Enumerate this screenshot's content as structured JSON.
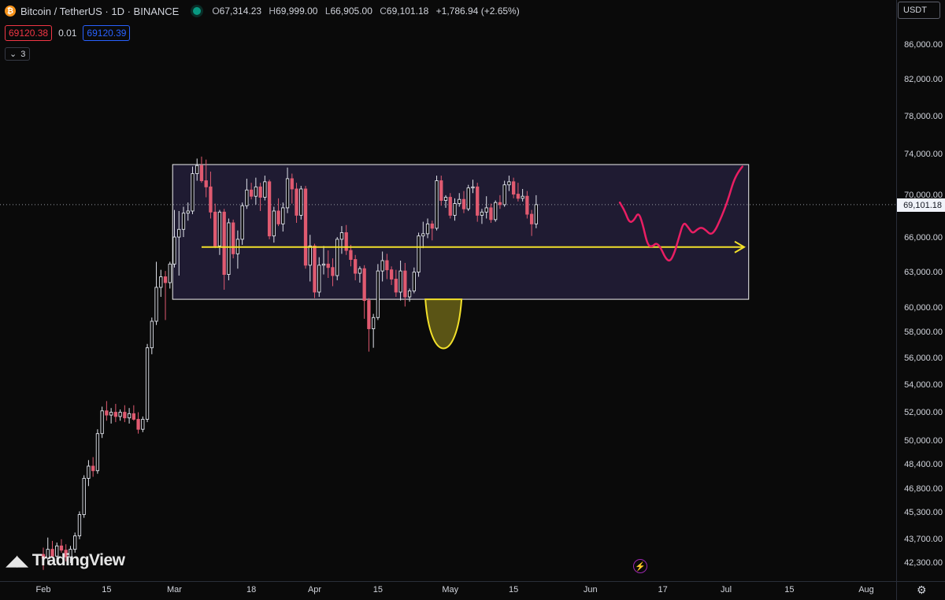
{
  "header": {
    "icon_letter": "₿",
    "symbol": "Bitcoin / TetherUS · 1D · BINANCE",
    "ohlc": [
      {
        "k": "O",
        "v": "67,314.23"
      },
      {
        "k": "H",
        "v": "69,999.00"
      },
      {
        "k": "L",
        "v": "66,905.00"
      },
      {
        "k": "C",
        "v": "69,101.18"
      }
    ],
    "change": "+1,786.94 (+2.65%)"
  },
  "trade": {
    "sell": "69120.38",
    "spread": "0.01",
    "buy": "69120.39"
  },
  "indicators": {
    "chevron": "⌄",
    "count": "3"
  },
  "currency": "USDT",
  "current_price_label": "69,101.18",
  "logo_text": "TradingView",
  "colors": {
    "up": "#e0e3eb",
    "down": "#e05a70",
    "box_border": "#f0f0f0",
    "box_fill": "#231f3a",
    "arrow": "#f2e02a",
    "projection": "#e91e63",
    "cup": "#f2e02a"
  },
  "chart_data": {
    "type": "candlestick",
    "title": "Bitcoin / TetherUS · 1D · BINANCE",
    "price_ticks": [
      {
        "label": "86,000.00",
        "y": 86000
      },
      {
        "label": "82,000.00",
        "y": 82000
      },
      {
        "label": "78,000.00",
        "y": 78000
      },
      {
        "label": "74,000.00",
        "y": 74000
      },
      {
        "label": "70,000.00",
        "y": 70000
      },
      {
        "label": "66,000.00",
        "y": 66000
      },
      {
        "label": "63,000.00",
        "y": 63000
      },
      {
        "label": "60,000.00",
        "y": 60000
      },
      {
        "label": "58,000.00",
        "y": 58000
      },
      {
        "label": "56,000.00",
        "y": 56000
      },
      {
        "label": "54,000.00",
        "y": 54000
      },
      {
        "label": "52,000.00",
        "y": 52000
      },
      {
        "label": "50,000.00",
        "y": 50000
      },
      {
        "label": "48,400.00",
        "y": 48400
      },
      {
        "label": "46,800.00",
        "y": 46800
      },
      {
        "label": "45,300.00",
        "y": 45300
      },
      {
        "label": "43,700.00",
        "y": 43700
      },
      {
        "label": "42,300.00",
        "y": 42300
      }
    ],
    "time_ticks": [
      {
        "label": "Feb",
        "day": 0
      },
      {
        "label": "15",
        "day": 14
      },
      {
        "label": "Mar",
        "day": 29
      },
      {
        "label": "18",
        "day": 46
      },
      {
        "label": "Apr",
        "day": 60
      },
      {
        "label": "15",
        "day": 74
      },
      {
        "label": "May",
        "day": 90
      },
      {
        "label": "15",
        "day": 104
      },
      {
        "label": "Jun",
        "day": 121
      },
      {
        "label": "17",
        "day": 137
      },
      {
        "label": "Jul",
        "day": 151
      },
      {
        "label": "15",
        "day": 165
      },
      {
        "label": "Aug",
        "day": 182
      }
    ],
    "current_price": 69101.18,
    "candles": [
      [
        42800,
        43200,
        41900,
        42580
      ],
      [
        42580,
        43800,
        42200,
        43100
      ],
      [
        43100,
        43600,
        42600,
        42700
      ],
      [
        42700,
        43500,
        42500,
        43300
      ],
      [
        43300,
        43700,
        42900,
        43050
      ],
      [
        43050,
        43400,
        42400,
        42650
      ],
      [
        42650,
        43300,
        42300,
        43100
      ],
      [
        43100,
        44100,
        42900,
        43900
      ],
      [
        43900,
        45400,
        43700,
        45200
      ],
      [
        45200,
        47700,
        45000,
        47500
      ],
      [
        47500,
        48700,
        47000,
        48300
      ],
      [
        48300,
        48900,
        47600,
        48000
      ],
      [
        48000,
        50800,
        47800,
        50500
      ],
      [
        50500,
        52400,
        50200,
        52100
      ],
      [
        52100,
        52800,
        51400,
        51800
      ],
      [
        51800,
        52300,
        51200,
        52000
      ],
      [
        52000,
        52600,
        51300,
        51700
      ],
      [
        51700,
        52200,
        51400,
        52000
      ],
      [
        52000,
        52500,
        51300,
        51600
      ],
      [
        51600,
        52300,
        51200,
        51900
      ],
      [
        51900,
        52500,
        51400,
        51500
      ],
      [
        51500,
        52000,
        50500,
        50800
      ],
      [
        50800,
        51700,
        50600,
        51500
      ],
      [
        51500,
        57100,
        51300,
        56800
      ],
      [
        56800,
        59200,
        56300,
        58900
      ],
      [
        58900,
        63900,
        58600,
        61700
      ],
      [
        61700,
        63200,
        60900,
        62600
      ],
      [
        62600,
        63100,
        59000,
        62100
      ],
      [
        62100,
        63900,
        61600,
        63700
      ],
      [
        63700,
        68600,
        63400,
        66100
      ],
      [
        66100,
        68500,
        62700,
        66800
      ],
      [
        66800,
        68900,
        66100,
        68300
      ],
      [
        68300,
        69300,
        67600,
        68500
      ],
      [
        68500,
        72800,
        68200,
        72100
      ],
      [
        72100,
        73600,
        71400,
        72900
      ],
      [
        72900,
        73800,
        71200,
        71400
      ],
      [
        71400,
        73500,
        69800,
        70800
      ],
      [
        70800,
        72300,
        67800,
        68400
      ],
      [
        68400,
        69200,
        65100,
        65300
      ],
      [
        65300,
        68600,
        64500,
        68400
      ],
      [
        68400,
        68700,
        61500,
        62800
      ],
      [
        62800,
        67800,
        62300,
        67400
      ],
      [
        67400,
        67700,
        64200,
        64600
      ],
      [
        64600,
        66700,
        63300,
        65900
      ],
      [
        65900,
        69300,
        65400,
        69000
      ],
      [
        69000,
        71600,
        68700,
        70500
      ],
      [
        70500,
        71200,
        69600,
        69900
      ],
      [
        69900,
        71700,
        69100,
        70800
      ],
      [
        70800,
        71200,
        68500,
        69800
      ],
      [
        69800,
        71900,
        69500,
        71300
      ],
      [
        71300,
        71500,
        65900,
        66200
      ],
      [
        66200,
        68900,
        65600,
        68500
      ],
      [
        68500,
        69700,
        67100,
        67300
      ],
      [
        67300,
        69300,
        66600,
        68800
      ],
      [
        68800,
        72700,
        68300,
        71600
      ],
      [
        71600,
        72100,
        69200,
        70600
      ],
      [
        70600,
        71200,
        67400,
        68100
      ],
      [
        68100,
        70900,
        67700,
        70600
      ],
      [
        70600,
        70900,
        63300,
        63600
      ],
      [
        63600,
        66300,
        62200,
        65300
      ],
      [
        65300,
        65500,
        60800,
        61300
      ],
      [
        61300,
        64300,
        60900,
        63600
      ],
      [
        63600,
        65300,
        62800,
        63700
      ],
      [
        63700,
        64900,
        62500,
        63400
      ],
      [
        63400,
        64200,
        61800,
        62700
      ],
      [
        62700,
        66100,
        62300,
        65900
      ],
      [
        65900,
        67100,
        64600,
        66500
      ],
      [
        66500,
        67200,
        64500,
        64900
      ],
      [
        64900,
        65400,
        63500,
        64100
      ],
      [
        64100,
        64500,
        62300,
        62900
      ],
      [
        62900,
        63500,
        62100,
        63300
      ],
      [
        63300,
        63600,
        59100,
        60600
      ],
      [
        60600,
        60800,
        56500,
        58300
      ],
      [
        58300,
        59500,
        56800,
        59200
      ],
      [
        59200,
        63700,
        59000,
        63100
      ],
      [
        63100,
        64800,
        62200,
        64000
      ],
      [
        64000,
        64600,
        62400,
        63200
      ],
      [
        63200,
        63500,
        61900,
        62400
      ],
      [
        62400,
        63200,
        60900,
        61300
      ],
      [
        61300,
        64000,
        60600,
        63100
      ],
      [
        63100,
        63800,
        60100,
        60900
      ],
      [
        60900,
        61600,
        60500,
        61400
      ],
      [
        61400,
        63400,
        61200,
        63000
      ],
      [
        63000,
        66500,
        62600,
        66200
      ],
      [
        66200,
        67500,
        65100,
        66400
      ],
      [
        66400,
        67800,
        66000,
        67300
      ],
      [
        67300,
        67600,
        65800,
        66900
      ],
      [
        66900,
        71900,
        66700,
        71400
      ],
      [
        71400,
        71900,
        69000,
        69500
      ],
      [
        69500,
        70000,
        68800,
        69800
      ],
      [
        69800,
        70200,
        67800,
        68100
      ],
      [
        68100,
        69700,
        67600,
        69200
      ],
      [
        69200,
        70200,
        68900,
        69600
      ],
      [
        69600,
        70400,
        68300,
        68700
      ],
      [
        68700,
        71000,
        68500,
        70700
      ],
      [
        70700,
        71500,
        70200,
        70800
      ],
      [
        70800,
        71200,
        67500,
        68100
      ],
      [
        68100,
        68700,
        67300,
        68400
      ],
      [
        68400,
        69900,
        67800,
        68800
      ],
      [
        68800,
        69200,
        67400,
        67700
      ],
      [
        67700,
        69500,
        67500,
        69300
      ],
      [
        69300,
        70000,
        68700,
        69100
      ],
      [
        69100,
        71400,
        68900,
        71000
      ],
      [
        71000,
        71900,
        70400,
        71300
      ],
      [
        71300,
        71700,
        69700,
        70100
      ],
      [
        70100,
        71200,
        69400,
        69700
      ],
      [
        69700,
        70600,
        69400,
        69900
      ],
      [
        69900,
        70400,
        67800,
        68200
      ],
      [
        68200,
        68600,
        66200,
        67300
      ],
      [
        67300,
        69999,
        66905,
        69101.18
      ]
    ],
    "annotations": {
      "range_box": {
        "day_start": 28.6,
        "day_end": 156,
        "price_top": 73000,
        "price_bottom": 60700
      },
      "support_arrow": {
        "day_start": 35,
        "day_end": 155,
        "price": 65200
      },
      "cup": {
        "day_start": 84.5,
        "day_end": 92.5,
        "price_top": 60700,
        "price_bottom": 56700
      },
      "projection": [
        [
          127.5,
          69300
        ],
        [
          128.6,
          68500
        ],
        [
          129.6,
          67400
        ],
        [
          130.6,
          67600
        ],
        [
          131.6,
          68400
        ],
        [
          132.5,
          67400
        ],
        [
          133.6,
          65400
        ],
        [
          134.6,
          65200
        ],
        [
          135.6,
          65600
        ],
        [
          136.6,
          65100
        ],
        [
          137.6,
          64200
        ],
        [
          138.6,
          63900
        ],
        [
          139.6,
          64700
        ],
        [
          140.6,
          66100
        ],
        [
          141.6,
          67500
        ],
        [
          142.6,
          67000
        ],
        [
          143.6,
          66400
        ],
        [
          144.6,
          66800
        ],
        [
          145.6,
          67000
        ],
        [
          146.6,
          66700
        ],
        [
          147.6,
          66300
        ],
        [
          148.6,
          66700
        ],
        [
          149.6,
          67600
        ],
        [
          150.6,
          68600
        ],
        [
          151.6,
          69800
        ],
        [
          152.6,
          71300
        ],
        [
          153.6,
          72200
        ],
        [
          154.6,
          72800
        ]
      ]
    }
  }
}
